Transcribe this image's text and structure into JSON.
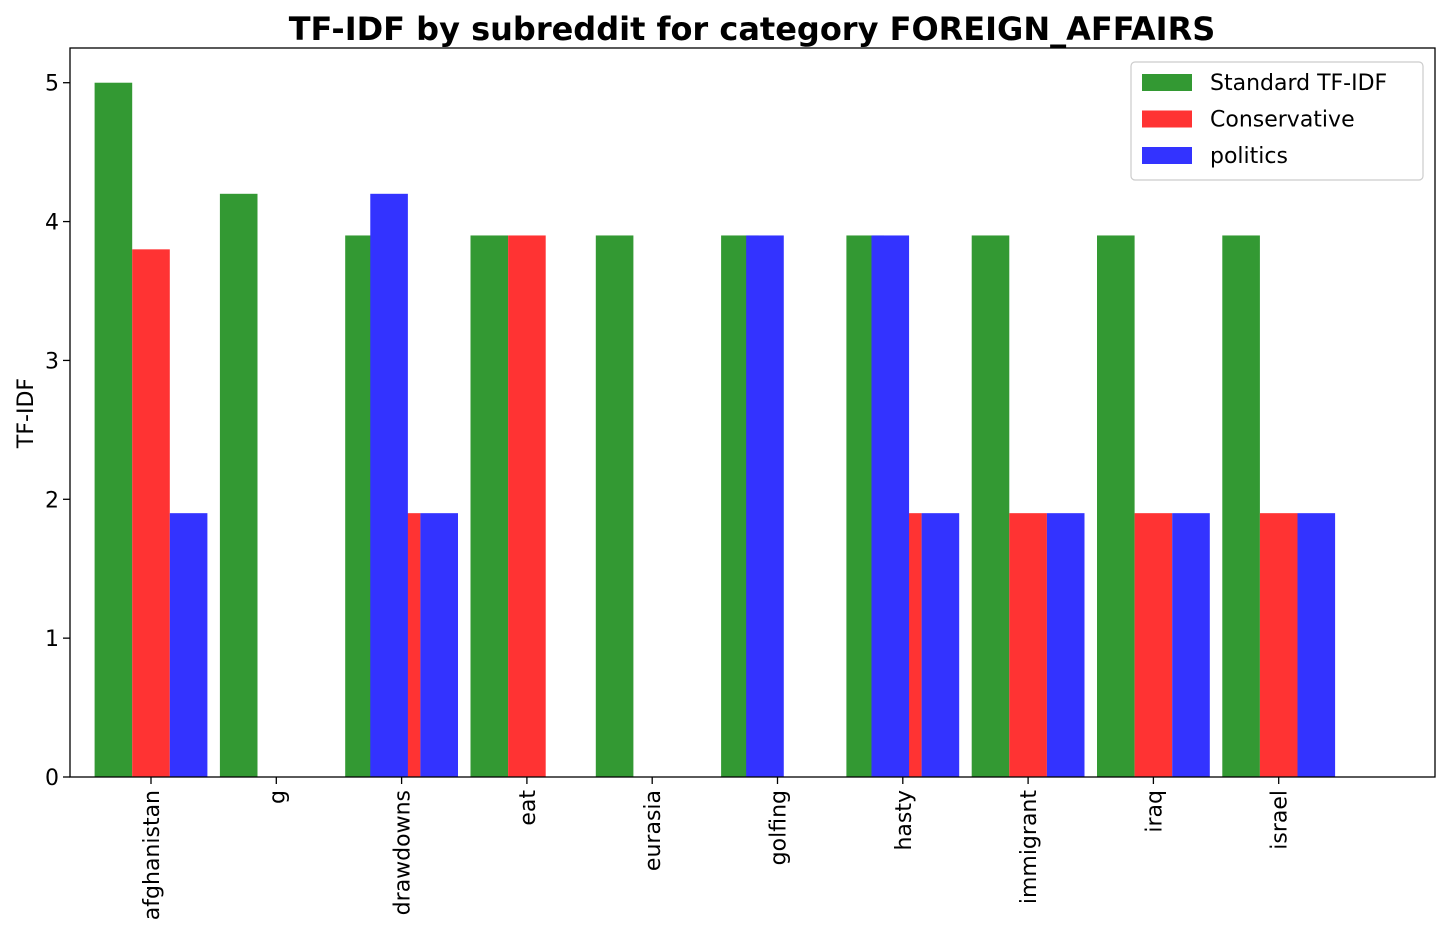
{
  "chart_data": {
    "type": "bar",
    "title": "TF-IDF by subreddit for category FOREIGN_AFFAIRS",
    "xlabel": "",
    "ylabel": "TF-IDF",
    "ylim": [
      0,
      5.25
    ],
    "yticks": [
      "0",
      "1",
      "2",
      "3",
      "4",
      "5"
    ],
    "grid": false,
    "legend_position": "top-right",
    "categories": [
      "afghanistan",
      "g",
      "drawdowns",
      "eat",
      "eurasia",
      "golfing",
      "hasty",
      "immigrant",
      "iraq",
      "israel"
    ],
    "series": [
      {
        "name": "Standard TF-IDF",
        "color": "#339933",
        "bars": [
          {
            "x": 0,
            "value": 5.0
          },
          {
            "x": 1,
            "value": 4.2
          },
          {
            "x": 2,
            "value": 3.9
          },
          {
            "x": 3,
            "value": 3.9
          },
          {
            "x": 4,
            "value": 3.9
          },
          {
            "x": 5,
            "value": 3.9
          },
          {
            "x": 6,
            "value": 3.9
          },
          {
            "x": 7,
            "value": 3.9
          },
          {
            "x": 8,
            "value": 3.9
          },
          {
            "x": 9,
            "value": 3.9
          }
        ]
      },
      {
        "name": "Conservative",
        "color": "#ff3333",
        "bars": [
          {
            "x": 0,
            "value": 3.8
          },
          {
            "x": 2,
            "value": 1.9
          },
          {
            "x": 3,
            "value": 3.9
          },
          {
            "x": 6,
            "value": 1.9
          },
          {
            "x": 7,
            "value": 1.9
          },
          {
            "x": 8,
            "value": 1.9
          },
          {
            "x": 9,
            "value": 1.9
          }
        ]
      },
      {
        "name": "politics",
        "color": "#3333ff",
        "bars": [
          {
            "x": 0,
            "value": 1.9
          },
          {
            "x": 1.6,
            "value": 4.2
          },
          {
            "x": 2,
            "value": 1.9
          },
          {
            "x": 4.6,
            "value": 3.9
          },
          {
            "x": 5.6,
            "value": 3.9
          },
          {
            "x": 6,
            "value": 1.9
          },
          {
            "x": 7,
            "value": 1.9
          },
          {
            "x": 8,
            "value": 1.9
          },
          {
            "x": 9,
            "value": 1.9
          }
        ]
      }
    ]
  }
}
